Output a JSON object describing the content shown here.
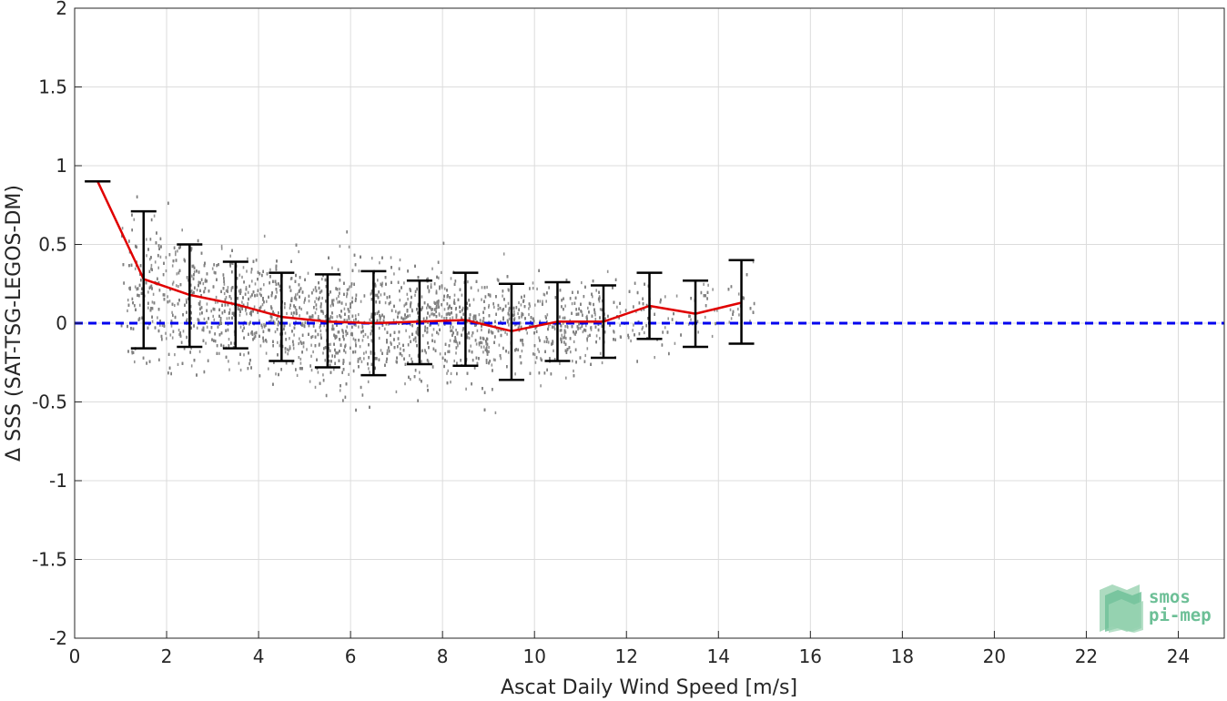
{
  "chart_data": {
    "type": "scatter",
    "xlabel": "Ascat Daily Wind Speed [m/s]",
    "ylabel": "Δ SSS (SAT-TSG-LEGOS-DM)",
    "xlim": [
      0,
      25
    ],
    "ylim": [
      -2,
      2
    ],
    "x_ticks": [
      "0",
      "2",
      "4",
      "6",
      "8",
      "10",
      "12",
      "14",
      "16",
      "18",
      "20",
      "22",
      "24"
    ],
    "y_ticks": [
      "2",
      "1.5",
      "1",
      "0.5",
      "0",
      "-0.5",
      "-1",
      "-1.5",
      "-2"
    ],
    "grid": true,
    "reference_line": {
      "y": 0,
      "color": "#0000ee",
      "style": "dashed"
    },
    "scatter_cloud": {
      "color": "#808080",
      "description_bins": [
        {
          "x": 1.0,
          "center": 0.25,
          "spread": 0.35
        },
        {
          "x": 2.0,
          "center": 0.2,
          "spread": 0.35
        },
        {
          "x": 3.0,
          "center": 0.12,
          "spread": 0.3
        },
        {
          "x": 4.0,
          "center": 0.08,
          "spread": 0.28
        },
        {
          "x": 5.0,
          "center": 0.03,
          "spread": 0.3
        },
        {
          "x": 6.0,
          "center": 0.01,
          "spread": 0.33
        },
        {
          "x": 7.0,
          "center": 0.01,
          "spread": 0.3
        },
        {
          "x": 8.0,
          "center": 0.02,
          "spread": 0.28
        },
        {
          "x": 9.0,
          "center": -0.02,
          "spread": 0.28
        },
        {
          "x": 10.0,
          "center": 0.0,
          "spread": 0.25
        },
        {
          "x": 11.0,
          "center": 0.01,
          "spread": 0.22
        },
        {
          "x": 12.0,
          "center": 0.05,
          "spread": 0.2
        },
        {
          "x": 13.5,
          "center": 0.05,
          "spread": 0.2
        },
        {
          "x": 14.5,
          "center": 0.1,
          "spread": 0.2
        }
      ]
    },
    "series": [
      {
        "color": "#e00000",
        "x": [
          0.5,
          1.5,
          2.5,
          3.5,
          4.5,
          5.5,
          6.5,
          7.5,
          8.5,
          9.5,
          10.5,
          11.5,
          12.5,
          13.5,
          14.5
        ],
        "y": [
          0.9,
          0.28,
          0.18,
          0.12,
          0.04,
          0.01,
          0.0,
          0.01,
          0.02,
          -0.05,
          0.01,
          0.01,
          0.11,
          0.06,
          0.13
        ]
      }
    ],
    "error_bars": {
      "color": "#000000",
      "x": [
        0.5,
        1.5,
        2.5,
        3.5,
        4.5,
        5.5,
        6.5,
        7.5,
        8.5,
        9.5,
        10.5,
        11.5,
        12.5,
        13.5,
        14.5
      ],
      "lower": [
        0.9,
        -0.16,
        -0.15,
        -0.16,
        -0.24,
        -0.28,
        -0.33,
        -0.26,
        -0.27,
        -0.36,
        -0.24,
        -0.22,
        -0.1,
        -0.15,
        -0.13
      ],
      "upper": [
        0.9,
        0.71,
        0.5,
        0.39,
        0.32,
        0.31,
        0.33,
        0.27,
        0.32,
        0.25,
        0.26,
        0.24,
        0.32,
        0.27,
        0.4
      ]
    }
  },
  "logo": {
    "line1": "smos",
    "line2": "pi-mep",
    "colors": [
      "#9fd5b5",
      "#6cbf96",
      "#4aa77a"
    ]
  }
}
